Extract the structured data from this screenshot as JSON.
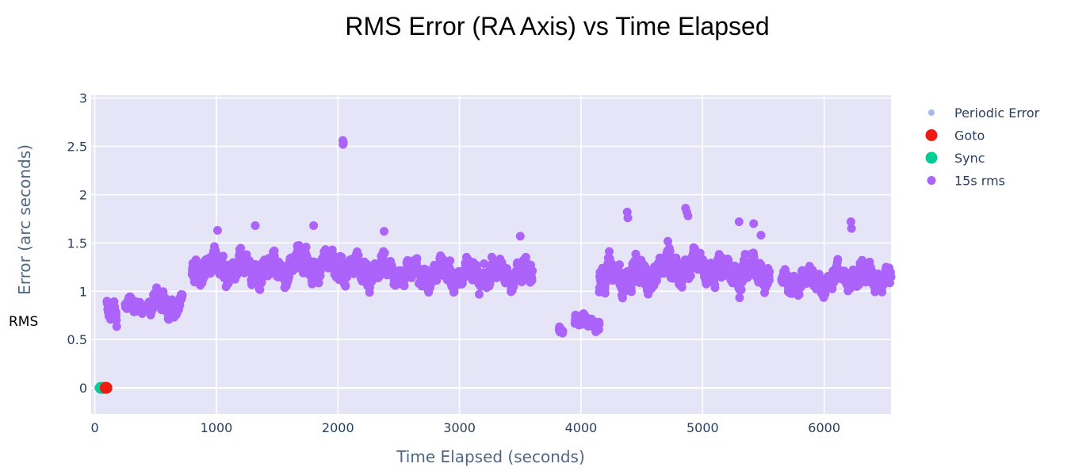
{
  "chart_data": {
    "type": "scatter",
    "title": "RMS Error (RA Axis) vs Time Elapsed",
    "xlabel": "Time Elapsed (seconds)",
    "ylabel": "Error (arc seconds)",
    "side_label": "RMS",
    "xlim": [
      -30,
      6550
    ],
    "ylim": [
      -0.27,
      3.03
    ],
    "x_ticks": [
      0,
      1000,
      2000,
      3000,
      4000,
      5000,
      6000
    ],
    "x_tick_labels": [
      "0",
      "1000",
      "2000",
      "3000",
      "4000",
      "5000",
      "6000"
    ],
    "y_ticks": [
      0,
      0.5,
      1,
      1.5,
      2,
      2.5,
      3
    ],
    "y_tick_labels": [
      "0",
      "0.5",
      "1",
      "1.5",
      "2",
      "2.5",
      "3"
    ],
    "grid": true,
    "legend_position": "right",
    "plot_background": "#e5e5f7",
    "series": [
      {
        "name": "Periodic Error",
        "color": "#a9b7f2",
        "marker_size": "small",
        "points": [
          [
            20,
            0
          ],
          [
            30,
            0
          ],
          [
            40,
            0
          ],
          [
            50,
            0
          ],
          [
            55,
            0
          ]
        ]
      },
      {
        "name": "Goto",
        "color": "#ef1a12",
        "marker_size": "large",
        "points": [
          [
            90,
            0
          ],
          [
            95,
            0
          ]
        ]
      },
      {
        "name": "Sync",
        "color": "#00cc96",
        "marker_size": "large",
        "points": [
          [
            50,
            0
          ],
          [
            60,
            0
          ],
          [
            70,
            0
          ]
        ]
      },
      {
        "name": "15s rms",
        "color": "#ab63fa",
        "marker_size": "medium",
        "segments": [
          {
            "x": [
              100,
              180
            ],
            "y": [
              0.82,
              0.1
            ]
          },
          {
            "x": [
              250,
              390
            ],
            "y": [
              0.84,
              0.07
            ]
          },
          {
            "x": [
              440,
              720
            ],
            "y": [
              0.87,
              0.1
            ]
          },
          {
            "x": [
              800,
              1200
            ],
            "y": [
              1.25,
              0.12
            ]
          },
          {
            "x": [
              1200,
              1600
            ],
            "y": [
              1.22,
              0.13
            ]
          },
          {
            "x": [
              1600,
              2050
            ],
            "y": [
              1.28,
              0.13
            ]
          },
          {
            "x": [
              2050,
              2500
            ],
            "y": [
              1.22,
              0.12
            ]
          },
          {
            "x": [
              2500,
              3000
            ],
            "y": [
              1.18,
              0.12
            ]
          },
          {
            "x": [
              3000,
              3600
            ],
            "y": [
              1.18,
              0.12
            ]
          },
          {
            "x": [
              3820,
              3850
            ],
            "y": [
              0.59,
              0.03
            ]
          },
          {
            "x": [
              3950,
              4150
            ],
            "y": [
              0.68,
              0.06
            ]
          },
          {
            "x": [
              4150,
              4600
            ],
            "y": [
              1.15,
              0.15
            ]
          },
          {
            "x": [
              4600,
              5100
            ],
            "y": [
              1.25,
              0.13
            ]
          },
          {
            "x": [
              5100,
              5550
            ],
            "y": [
              1.2,
              0.14
            ]
          },
          {
            "x": [
              5650,
              6100
            ],
            "y": [
              1.1,
              0.1
            ]
          },
          {
            "x": [
              6100,
              6550
            ],
            "y": [
              1.15,
              0.11
            ]
          }
        ],
        "extra_points": [
          [
            2040,
            2.56
          ],
          [
            2042,
            2.52
          ],
          [
            2045,
            2.54
          ],
          [
            4380,
            1.82
          ],
          [
            4385,
            1.76
          ],
          [
            4860,
            1.86
          ],
          [
            4870,
            1.82
          ],
          [
            4880,
            1.78
          ],
          [
            6220,
            1.72
          ],
          [
            6225,
            1.65
          ],
          [
            5420,
            1.7
          ],
          [
            1010,
            1.63
          ],
          [
            1320,
            1.68
          ],
          [
            1800,
            1.68
          ],
          [
            2380,
            1.62
          ],
          [
            3500,
            1.57
          ],
          [
            5480,
            1.58
          ],
          [
            5300,
            1.72
          ]
        ]
      }
    ]
  }
}
